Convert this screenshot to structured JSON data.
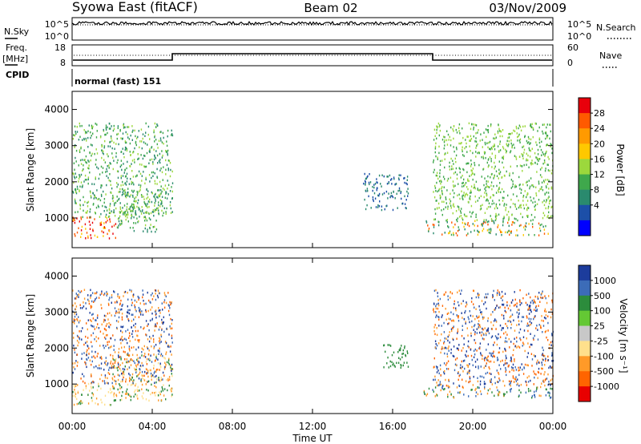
{
  "header": {
    "radar": "Syowa East (fitACF)",
    "beam": "Beam 02",
    "date": "03/Nov/2009"
  },
  "summary": {
    "nsky_label": "N.Sky",
    "nsky_ticks": [
      "10^5",
      "10^0"
    ],
    "nsearch_label": "N.Search",
    "nsearch_ticks": [
      "10^5",
      "10^0"
    ],
    "freq_label": [
      "Freq.",
      "[MHz]"
    ],
    "freq_ticks": [
      "18",
      "8"
    ],
    "nave_label": "Nave",
    "nave_ticks": [
      "60",
      "0"
    ],
    "cpid_label": "CPID",
    "cpid_text": "normal (fast) 151"
  },
  "axes": {
    "ylabel": "Slant Range [km]",
    "yticks": [
      "4000",
      "3000",
      "2000",
      "1000"
    ],
    "xticks": [
      "00:00",
      "04:00",
      "08:00",
      "12:00",
      "16:00",
      "20:00",
      "00:00"
    ],
    "xlabel": "Time UT"
  },
  "power_scale": {
    "label": "Power [dB]",
    "ticks": [
      "28",
      "24",
      "20",
      "16",
      "12",
      "8",
      "4"
    ],
    "colors": [
      "#e8000b",
      "#ff5a00",
      "#ff9a00",
      "#ffc800",
      "#9cd83c",
      "#3fa84c",
      "#2a8a6e",
      "#1c4fa8",
      "#0000ff"
    ]
  },
  "velocity_scale": {
    "label": "Velocity [m s⁻¹]",
    "ticks": [
      "1000",
      "500",
      "100",
      "25",
      "-25",
      "-100",
      "-500",
      "-1000"
    ],
    "colors": [
      "#1c3c9c",
      "#3c6cb8",
      "#2c8c3c",
      "#64c834",
      "#c8c8c8",
      "#ffe08c",
      "#ff9a28",
      "#ff6400",
      "#e80000"
    ]
  },
  "chart_data": [
    {
      "type": "heatmap",
      "name": "power",
      "xlabel": "Time UT",
      "ylabel": "Slant Range [km]",
      "xlim_hours": [
        0,
        24
      ],
      "ylim_km": [
        180,
        4500
      ],
      "clabel": "Power [dB]",
      "clim": [
        0,
        30
      ],
      "regions": [
        {
          "t": [
            0,
            2.2
          ],
          "r": [
            400,
            1000
          ],
          "levels": [
            20,
            24,
            28
          ]
        },
        {
          "t": [
            2.2,
            4.5
          ],
          "r": [
            600,
            1800
          ],
          "levels": [
            12,
            8,
            16
          ]
        },
        {
          "t": [
            0,
            5
          ],
          "r": [
            1000,
            3600
          ],
          "levels": [
            12,
            16,
            8
          ]
        },
        {
          "t": [
            14.5,
            16.8
          ],
          "r": [
            1200,
            2200
          ],
          "levels": [
            4,
            8
          ]
        },
        {
          "t": [
            17.5,
            24
          ],
          "r": [
            500,
            900
          ],
          "levels": [
            8,
            12,
            20,
            24
          ]
        },
        {
          "t": [
            18,
            24
          ],
          "r": [
            900,
            3600
          ],
          "levels": [
            12,
            16
          ]
        }
      ]
    },
    {
      "type": "heatmap",
      "name": "velocity",
      "xlabel": "Time UT",
      "ylabel": "Slant Range [km]",
      "xlim_hours": [
        0,
        24
      ],
      "ylim_km": [
        180,
        4500
      ],
      "clabel": "Velocity [m s⁻¹]",
      "clim": [
        -1000,
        1000
      ],
      "regions": [
        {
          "t": [
            0,
            2.5
          ],
          "r": [
            400,
            1000
          ],
          "levels": [
            100,
            -100,
            -500
          ]
        },
        {
          "t": [
            2,
            5
          ],
          "r": [
            500,
            1800
          ],
          "levels": [
            -100,
            -500,
            100
          ]
        },
        {
          "t": [
            0,
            5
          ],
          "r": [
            1000,
            3600
          ],
          "levels": [
            -500,
            500,
            1000,
            -1000
          ]
        },
        {
          "t": [
            15.5,
            16.8
          ],
          "r": [
            1400,
            2100
          ],
          "levels": [
            100
          ]
        },
        {
          "t": [
            17.5,
            24
          ],
          "r": [
            600,
            900
          ],
          "levels": [
            100,
            500,
            -500
          ]
        },
        {
          "t": [
            18,
            24
          ],
          "r": [
            900,
            3600
          ],
          "levels": [
            -500,
            1000,
            -1000,
            500
          ]
        }
      ]
    }
  ]
}
